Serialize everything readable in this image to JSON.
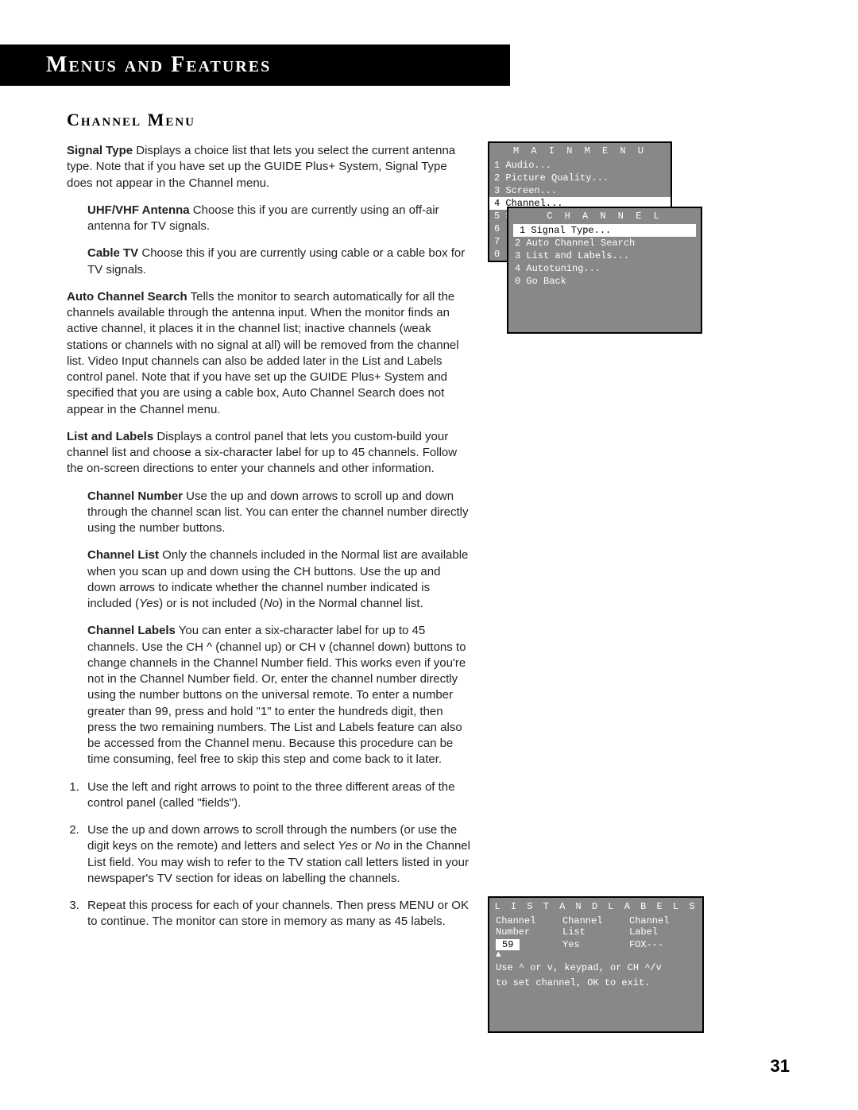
{
  "header": {
    "title": "Menus and Features"
  },
  "section": {
    "title": "Channel Menu"
  },
  "body": {
    "signalType": {
      "term": "Signal Type",
      "text": "   Displays a choice list that lets you select the current antenna type. Note that if you have set up the GUIDE Plus+ System, Signal Type does not appear in the Channel menu."
    },
    "uhf": {
      "term": "UHF/VHF Antenna",
      "text": "  Choose this if you are currently using an off-air antenna for TV signals."
    },
    "cable": {
      "term": "Cable TV",
      "text": "  Choose this if you are currently using cable or a cable box for TV signals."
    },
    "autoSearch": {
      "term": "Auto Channel Search",
      "text": "  Tells the monitor to search automatically for all the channels available through the antenna input. When the monitor finds an active channel, it places it in the channel list; inactive channels (weak stations or channels with no signal at all) will be removed from the channel list. Video Input channels can also be added later in the List and Labels control panel. Note that if you have set up the GUIDE Plus+ System and specified that you are using a cable box, Auto Channel Search does not appear in the Channel menu."
    },
    "listLabels": {
      "term": "List and Labels",
      "text": "   Displays a control panel that lets you custom-build your channel list and choose a six-character label for up to 45 channels. Follow the on-screen directions to enter your channels and other information."
    },
    "chNum": {
      "term": "Channel Number",
      "text": "   Use the up and down arrows to scroll up and down through the channel scan list. You can enter the channel number directly using the number buttons."
    },
    "chList": {
      "term": "Channel List",
      "t1": "   Only the channels included in the Normal list are available when you scan up and down using the CH buttons. Use the up and down arrows to indicate whether the channel number indicated is included (",
      "yes": "Yes",
      "t2": ") or is not included (",
      "no": "No",
      "t3": ") in the Normal channel list."
    },
    "chLabels": {
      "term": "Channel Labels",
      "text": "   You can enter a six-character label for up to 45 channels. Use the CH ^ (channel up) or CH v (channel down) buttons to change channels in the Channel Number field. This works even if you're not in the Channel Number field. Or, enter the channel number directly using the number buttons on the universal remote. To enter a number greater than 99, press and hold \"1\" to enter the hundreds digit, then press the two remaining numbers. The List and Labels feature can also be accessed from the Channel menu. Because this procedure can be time consuming, feel free to skip this step and come back to it later."
    },
    "steps": {
      "s1": "Use the left and right arrows to point to the three different areas of the control panel (called \"fields\").",
      "s2a": "Use the up and down arrows to scroll through the numbers (or use the digit keys on the remote) and letters and select ",
      "s2yes": "Yes",
      "s2or": " or ",
      "s2no": "No",
      "s2b": " in the Channel List field. You may wish to refer to the TV station call letters listed in your newspaper's TV section for ideas on labelling the channels.",
      "s3": "Repeat this process for each of your channels. Then press MENU or OK to continue. The monitor can store in memory as many as 45 labels."
    }
  },
  "osd1": {
    "title": "M A I N   M E N U",
    "rows": [
      "1 Audio...",
      "2 Picture Quality...",
      "3 Screen...",
      "4 Channel...",
      "5 Set Time...",
      "6",
      "7",
      "0"
    ],
    "selectedIndex": 3
  },
  "osd1b": {
    "title": "C H A N N E L",
    "rows": [
      "1 Signal Type...",
      "2 Auto Channel Search",
      "3 List and Labels...",
      "4 Autotuning...",
      "0 Go Back"
    ],
    "selectedIndex": 0
  },
  "osd2": {
    "title": "L I S T   A N D   L A B E L S",
    "col1a": "Channel",
    "col1b": "Number",
    "col2a": "Channel",
    "col2b": "List",
    "col3a": "Channel",
    "col3b": "Label",
    "valNum": "59",
    "valList": "Yes",
    "valLabel": "FOX---",
    "arrow": "▲",
    "help1": "Use ^ or v, keypad, or CH ^/v",
    "help2": "to set channel, OK to exit."
  },
  "page": {
    "number": "31"
  },
  "colors": {
    "headerBg": "#000000",
    "headerFg": "#ffffff",
    "osdBg": "#888888",
    "osdFg": "#ffffff",
    "osdSelBg": "#ffffff",
    "osdSelFg": "#000000",
    "bodyText": "#222222"
  }
}
